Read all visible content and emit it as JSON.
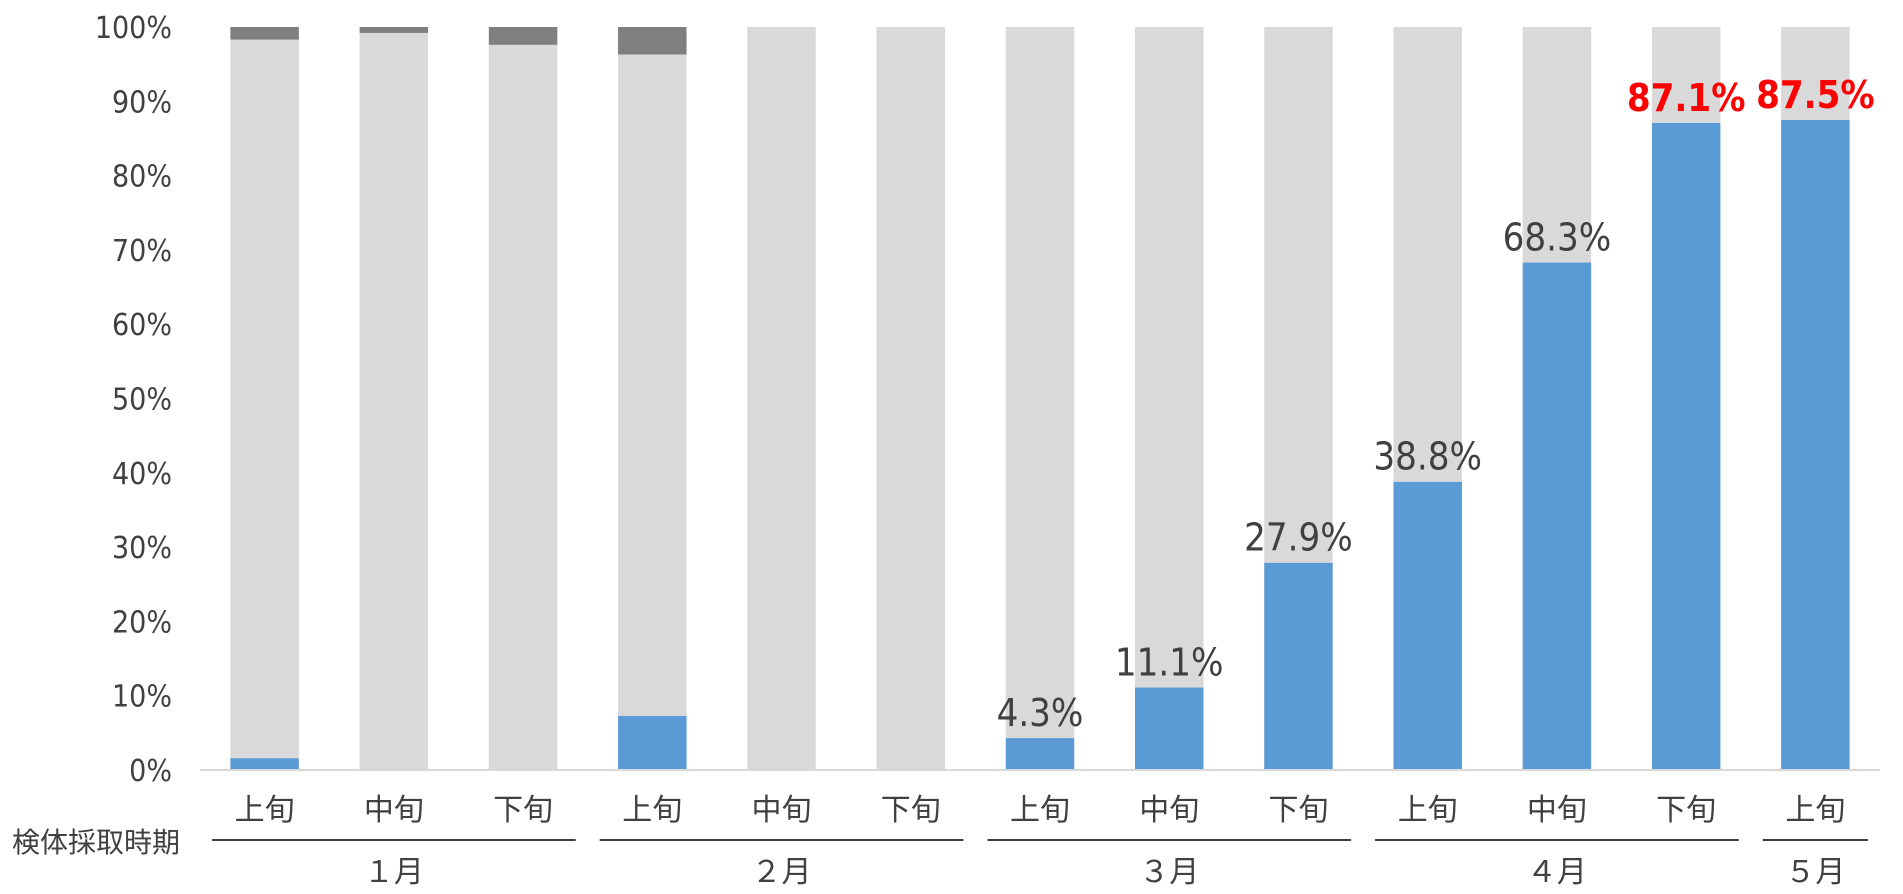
{
  "chart_data": {
    "type": "bar",
    "stacked": true,
    "percent_stacked": true,
    "xlabel": "検体採取時期",
    "ylabel": "",
    "ylim": [
      0,
      100
    ],
    "y_ticks": [
      "0%",
      "10%",
      "20%",
      "30%",
      "40%",
      "50%",
      "60%",
      "70%",
      "80%",
      "90%",
      "100%"
    ],
    "categories": [
      "上旬",
      "中旬",
      "下旬",
      "上旬",
      "中旬",
      "下旬",
      "上旬",
      "中旬",
      "下旬",
      "上旬",
      "中旬",
      "下旬",
      "上旬"
    ],
    "month_groups": [
      {
        "label": "１月",
        "start": 0,
        "end": 2
      },
      {
        "label": "２月",
        "start": 3,
        "end": 5
      },
      {
        "label": "３月",
        "start": 6,
        "end": 8
      },
      {
        "label": "４月",
        "start": 9,
        "end": 11
      },
      {
        "label": "５月",
        "start": 12,
        "end": 12
      }
    ],
    "series": [
      {
        "values": [
          1.6,
          0,
          0,
          7.3,
          0,
          0,
          4.3,
          11.1,
          27.9,
          38.8,
          68.3,
          87.1,
          87.5
        ],
        "color": "#5b9bd5"
      },
      {
        "values": [
          96.7,
          99.2,
          97.6,
          89.0,
          100,
          100,
          95.7,
          88.9,
          72.1,
          61.2,
          31.7,
          12.9,
          12.5
        ],
        "color": "#d9d9d9"
      },
      {
        "values": [
          1.7,
          0.8,
          2.4,
          3.7,
          0,
          0,
          0,
          0,
          0,
          0,
          0,
          0,
          0
        ],
        "color": "#7f7f7f"
      }
    ],
    "data_labels": [
      {
        "index": 6,
        "text": "4.3%",
        "color": "#404040"
      },
      {
        "index": 7,
        "text": "11.1%",
        "color": "#404040"
      },
      {
        "index": 8,
        "text": "27.9%",
        "color": "#404040"
      },
      {
        "index": 9,
        "text": "38.8%",
        "color": "#404040"
      },
      {
        "index": 10,
        "text": "68.3%",
        "color": "#404040"
      },
      {
        "index": 11,
        "text": "87.1%",
        "color": "#ff0000",
        "bold": true
      },
      {
        "index": 12,
        "text": "87.5%",
        "color": "#ff0000",
        "bold": true
      }
    ],
    "grid": false,
    "legend": "none"
  }
}
